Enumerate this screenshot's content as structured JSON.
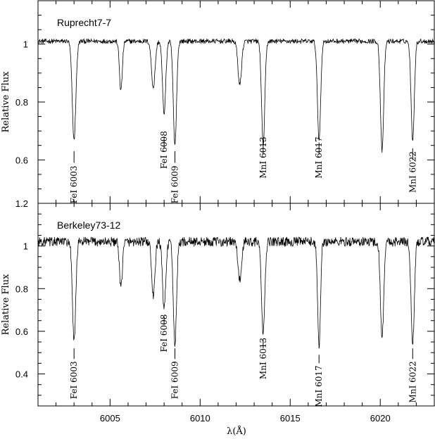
{
  "chart_data": [
    {
      "type": "line",
      "title": "Ruprecht7-7",
      "xlabel": "λ(Å)",
      "ylabel": "Relative Flux",
      "xlim": [
        6001,
        6023
      ],
      "ylim": [
        0.45,
        1.15
      ],
      "yticks": [
        0.6,
        0.8,
        1
      ],
      "ytick_labels": [
        "0.6",
        "0.8",
        "1"
      ],
      "xticks": [
        6005,
        6010,
        6015,
        6020
      ],
      "continuum": 1.01,
      "noise": 0.008,
      "absorption_lines": [
        {
          "wavelength": 6003.0,
          "depth": 0.34,
          "width": 0.1
        },
        {
          "wavelength": 6005.6,
          "depth": 0.17,
          "width": 0.08
        },
        {
          "wavelength": 6007.4,
          "depth": 0.16,
          "width": 0.1
        },
        {
          "wavelength": 6008.0,
          "depth": 0.25,
          "width": 0.09
        },
        {
          "wavelength": 6008.6,
          "depth": 0.36,
          "width": 0.09
        },
        {
          "wavelength": 6012.2,
          "depth": 0.15,
          "width": 0.1
        },
        {
          "wavelength": 6013.5,
          "depth": 0.36,
          "width": 0.09
        },
        {
          "wavelength": 6016.6,
          "depth": 0.34,
          "width": 0.09
        },
        {
          "wavelength": 6020.1,
          "depth": 0.38,
          "width": 0.09
        },
        {
          "wavelength": 6021.8,
          "depth": 0.34,
          "width": 0.09
        }
      ],
      "labels": [
        {
          "text": "FeI 6003",
          "wavelength": 6003.0,
          "marker_flux": [
            0.59,
            0.63
          ],
          "text_top": 0.58
        },
        {
          "text": "FeI 6008",
          "wavelength": 6008.0,
          "marker_flux": [
            0.64,
            0.68
          ],
          "text_top": 0.7
        },
        {
          "text": "FeI 6009",
          "wavelength": 6008.6,
          "marker_flux": [
            0.59,
            0.63
          ],
          "text_top": 0.58
        },
        {
          "text": "MnI 6013",
          "wavelength": 6013.5,
          "marker_flux": [
            0.62,
            0.67
          ],
          "text_top": 0.68
        },
        {
          "text": "MnI 6017",
          "wavelength": 6016.6,
          "marker_flux": [
            0.62,
            0.66
          ],
          "text_top": 0.68
        },
        {
          "text": "MnI 6022",
          "wavelength": 6021.8,
          "marker_flux": [
            0.6,
            0.64
          ],
          "text_top": 0.63
        }
      ]
    },
    {
      "type": "line",
      "title": "Berkeley73-12",
      "xlabel": "λ(Å)",
      "ylabel": "Relative Flux",
      "xlim": [
        6001,
        6023
      ],
      "ylim": [
        0.25,
        1.2
      ],
      "yticks": [
        0.4,
        0.6,
        0.8,
        1,
        1.2
      ],
      "ytick_labels": [
        "0.4",
        "0.6",
        "0.8",
        "1",
        "1.2"
      ],
      "xticks": [
        6005,
        6010,
        6015,
        6020
      ],
      "xtick_labels": [
        "6005",
        "6010",
        "6015",
        "6020"
      ],
      "continuum": 1.02,
      "noise": 0.022,
      "absorption_lines": [
        {
          "wavelength": 6003.0,
          "depth": 0.47,
          "width": 0.09
        },
        {
          "wavelength": 6005.6,
          "depth": 0.22,
          "width": 0.08
        },
        {
          "wavelength": 6007.4,
          "depth": 0.26,
          "width": 0.09
        },
        {
          "wavelength": 6008.0,
          "depth": 0.31,
          "width": 0.09
        },
        {
          "wavelength": 6008.6,
          "depth": 0.48,
          "width": 0.09
        },
        {
          "wavelength": 6012.2,
          "depth": 0.18,
          "width": 0.1
        },
        {
          "wavelength": 6013.5,
          "depth": 0.44,
          "width": 0.09
        },
        {
          "wavelength": 6016.6,
          "depth": 0.49,
          "width": 0.08
        },
        {
          "wavelength": 6020.1,
          "depth": 0.45,
          "width": 0.09
        },
        {
          "wavelength": 6021.8,
          "depth": 0.48,
          "width": 0.09
        }
      ],
      "labels": [
        {
          "text": "FeI 6003",
          "wavelength": 6003.0,
          "marker_flux": [
            0.47,
            0.52
          ],
          "text_top": 0.46
        },
        {
          "text": "FeI 6008",
          "wavelength": 6008.0,
          "marker_flux": [
            0.63,
            0.67
          ],
          "text_top": 0.68
        },
        {
          "text": "FeI 6009",
          "wavelength": 6008.6,
          "marker_flux": [
            0.47,
            0.52
          ],
          "text_top": 0.46
        },
        {
          "text": "MnI 6013",
          "wavelength": 6013.5,
          "marker_flux": [
            0.52,
            0.56
          ],
          "text_top": 0.57
        },
        {
          "text": "MnI 6017",
          "wavelength": 6016.6,
          "marker_flux": [
            0.45,
            0.49
          ],
          "text_top": 0.44
        },
        {
          "text": "MnI 6022",
          "wavelength": 6021.8,
          "marker_flux": [
            0.47,
            0.52
          ],
          "text_top": 0.46
        }
      ]
    }
  ]
}
